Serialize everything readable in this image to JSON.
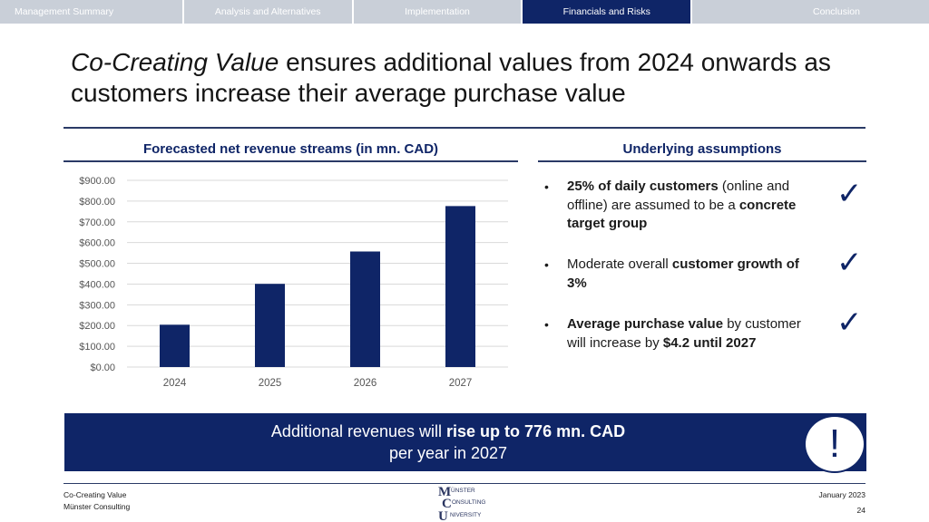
{
  "nav": {
    "tabs": [
      {
        "label": "Management Summary",
        "active": false
      },
      {
        "label": "Analysis and Alternatives",
        "active": false
      },
      {
        "label": "Implementation",
        "active": false
      },
      {
        "label": "Financials and Risks",
        "active": true
      },
      {
        "label": "Conclusion",
        "active": false
      }
    ]
  },
  "title": {
    "italic_part": "Co-Creating Value",
    "rest": " ensures additional values from 2024 onwards as customers increase their average purchase value"
  },
  "left_section": {
    "header": "Forecasted net revenue streams (in mn. CAD)"
  },
  "right_section": {
    "header": "Underlying assumptions"
  },
  "chart_data": {
    "type": "bar",
    "title": "Forecasted net revenue streams (in mn. CAD)",
    "categories": [
      "2024",
      "2025",
      "2026",
      "2027"
    ],
    "values": [
      204,
      401,
      557,
      776
    ],
    "ylim": [
      0,
      900
    ],
    "yticks": [
      0,
      100,
      200,
      300,
      400,
      500,
      600,
      700,
      800,
      900
    ],
    "ytick_labels": [
      "$0.00",
      "$100.00",
      "$200.00",
      "$300.00",
      "$400.00",
      "$500.00",
      "$600.00",
      "$700.00",
      "$800.00",
      "$900.00"
    ],
    "xlabel": "",
    "ylabel": "",
    "grid": true,
    "bar_color": "#0f2567"
  },
  "assumptions": [
    {
      "bold1": "25% of daily customers",
      "text1": " (online and offline) are assumed to be a ",
      "bold2": "concrete target group",
      "text2": ""
    },
    {
      "bold1": "",
      "text1": "Moderate overall ",
      "bold2": "customer growth of 3%",
      "text2": ""
    },
    {
      "bold1": "Average purchase value",
      "text1": " by customer will increase by ",
      "bold2": "$4.2 until 2027",
      "text2": ""
    }
  ],
  "check_symbol": "✓",
  "bullet_symbol": "•",
  "banner": {
    "text1": "Additional revenues will ",
    "bold": "rise up to 776 mn. CAD",
    "text2": "per year in 2027",
    "icon": "!"
  },
  "footer": {
    "left_line1": "Co-Creating Value",
    "left_line2": "Münster Consulting",
    "right_line1": "January 2023",
    "right_line2": "24",
    "logo": {
      "m": "M",
      "unster": "ÜNSTER",
      "c": "C",
      "onsulting": "ONSULTING",
      "u": "U",
      "niversity": "NIVERSITY"
    }
  },
  "colors": {
    "primary": "#0f2567",
    "tab_inactive": "#c9cfd8",
    "grid": "#d9d9d9"
  }
}
